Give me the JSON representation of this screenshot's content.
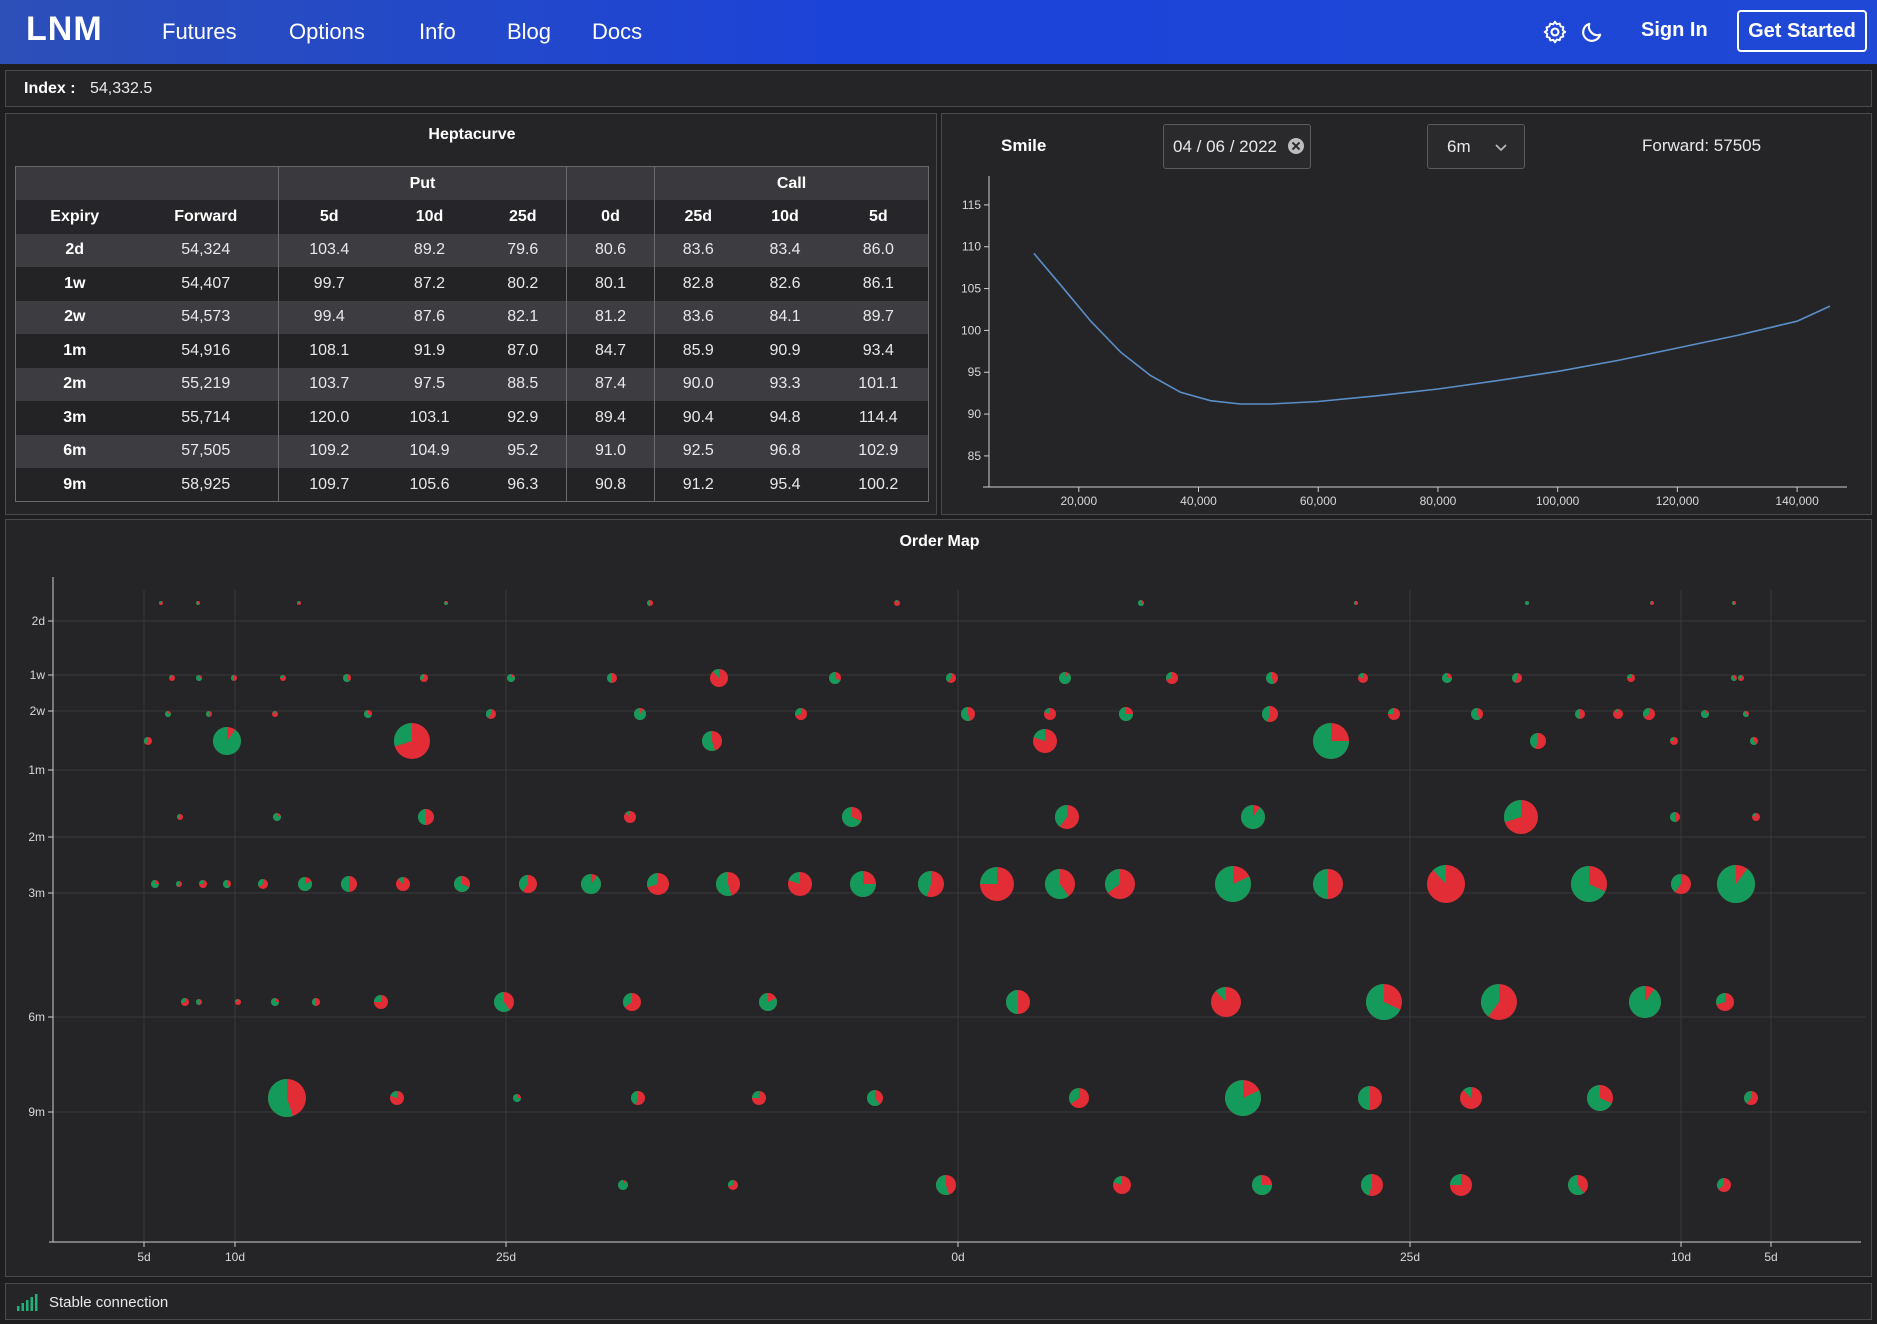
{
  "nav": {
    "brand": "LNM",
    "links": [
      "Futures",
      "Options",
      "Info",
      "Blog",
      "Docs"
    ],
    "sign_in": "Sign In",
    "get_started": "Get Started",
    "icons": [
      "gear-icon",
      "moon-icon"
    ]
  },
  "index": {
    "label": "Index :",
    "value": "54,332.5"
  },
  "heptacurve": {
    "title": "Heptacurve",
    "group_headers": {
      "put": "Put",
      "call": "Call"
    },
    "columns": [
      "Expiry",
      "Forward",
      "5d",
      "10d",
      "25d",
      "0d",
      "25d",
      "10d",
      "5d"
    ],
    "rows": [
      [
        "2d",
        "54,324",
        "103.4",
        "89.2",
        "79.6",
        "80.6",
        "83.6",
        "83.4",
        "86.0"
      ],
      [
        "1w",
        "54,407",
        "99.7",
        "87.2",
        "80.2",
        "80.1",
        "82.8",
        "82.6",
        "86.1"
      ],
      [
        "2w",
        "54,573",
        "99.4",
        "87.6",
        "82.1",
        "81.2",
        "83.6",
        "84.1",
        "89.7"
      ],
      [
        "1m",
        "54,916",
        "108.1",
        "91.9",
        "87.0",
        "84.7",
        "85.9",
        "90.9",
        "93.4"
      ],
      [
        "2m",
        "55,219",
        "103.7",
        "97.5",
        "88.5",
        "87.4",
        "90.0",
        "93.3",
        "101.1"
      ],
      [
        "3m",
        "55,714",
        "120.0",
        "103.1",
        "92.9",
        "89.4",
        "90.4",
        "94.8",
        "114.4"
      ],
      [
        "6m",
        "57,505",
        "109.2",
        "104.9",
        "95.2",
        "91.0",
        "92.5",
        "96.8",
        "102.9"
      ],
      [
        "9m",
        "58,925",
        "109.7",
        "105.6",
        "96.3",
        "90.8",
        "91.2",
        "95.4",
        "100.2"
      ]
    ]
  },
  "smile": {
    "label": "Smile",
    "date": "04 / 06 / 2022",
    "tenor": "6m",
    "forward": "Forward: 57505",
    "chart_data": {
      "type": "line",
      "x_ticks": [
        "20,000",
        "40,000",
        "60,000",
        "80,000",
        "100,000",
        "120,000",
        "140,000"
      ],
      "x_tick_values": [
        20000,
        40000,
        60000,
        80000,
        100000,
        120000,
        140000
      ],
      "y_ticks": [
        "85",
        "90",
        "95",
        "100",
        "105",
        "110",
        "115"
      ],
      "y_tick_values": [
        85,
        90,
        95,
        100,
        105,
        110,
        115
      ],
      "xlim": [
        5000,
        148000
      ],
      "ylim": [
        82,
        117.5
      ],
      "color": "#5b8fc9",
      "x": [
        12500,
        17000,
        22000,
        27000,
        32000,
        37000,
        42000,
        47000,
        52000,
        60000,
        70000,
        80000,
        90000,
        100000,
        110000,
        120000,
        130000,
        140000,
        145500
      ],
      "y": [
        109.2,
        105.4,
        101.1,
        97.4,
        94.6,
        92.6,
        91.6,
        91.2,
        91.2,
        91.5,
        92.2,
        93.0,
        94.0,
        95.1,
        96.4,
        97.9,
        99.4,
        101.1,
        102.9
      ]
    }
  },
  "order_map": {
    "title": "Order Map",
    "chart_data": {
      "type": "scatter",
      "x_labels": [
        "5d",
        "10d",
        "25d",
        "0d",
        "25d",
        "10d",
        "5d"
      ],
      "y_labels": [
        "2d",
        "1w",
        "2w",
        "1m",
        "2m",
        "3m",
        "6m",
        "9m"
      ],
      "colors": {
        "red": "#e32d36",
        "green": "#149a5a"
      },
      "rows": [
        {
          "r": [
            2,
            2,
            2,
            2,
            3,
            3,
            3,
            2,
            2,
            2,
            2
          ]
        },
        {
          "r": [
            3,
            3,
            3,
            3,
            4,
            4,
            4,
            5,
            9,
            6,
            5,
            6,
            6,
            6,
            5,
            5,
            5,
            4,
            3,
            3
          ]
        },
        {
          "r": [
            3,
            3,
            3,
            4,
            5,
            6,
            6,
            7,
            6,
            7,
            8,
            6,
            6,
            6,
            4,
            5,
            5,
            3
          ]
        },
        {
          "r": [
            4,
            14,
            18,
            10,
            12,
            18,
            8,
            4,
            4
          ]
        },
        {
          "r": [
            3,
            4,
            8,
            6,
            10,
            12,
            12,
            17,
            5,
            4
          ]
        },
        {
          "r": [
            4,
            3,
            4,
            4,
            5,
            7,
            8,
            7,
            8,
            9,
            10,
            11,
            12,
            12,
            13,
            13,
            17,
            15,
            15,
            18,
            15,
            19,
            18,
            10,
            19
          ]
        },
        {
          "r": [
            4,
            3,
            3,
            4,
            4,
            7,
            10,
            9,
            9,
            12,
            15,
            18,
            18,
            16,
            9
          ]
        },
        {
          "r": [
            19,
            7,
            4,
            7,
            7,
            8,
            10,
            18,
            12,
            11,
            13,
            7
          ]
        },
        {
          "r": [
            5,
            5,
            10,
            9,
            10,
            11,
            11,
            10,
            7
          ]
        }
      ]
    }
  },
  "status": {
    "text": "Stable connection"
  }
}
